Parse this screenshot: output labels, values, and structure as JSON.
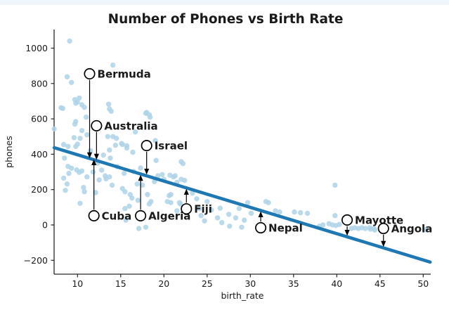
{
  "page": {
    "topbar_color": "#eff7fd",
    "background_color": "#ffffff"
  },
  "chart_data": {
    "type": "scatter",
    "title": "Number of Phones vs Birth Rate",
    "xlabel": "birth_rate",
    "ylabel": "phones",
    "xlim": [
      7.3,
      51.2
    ],
    "ylim": [
      -278,
      1105
    ],
    "xticks": [
      10,
      15,
      20,
      25,
      30,
      35,
      40,
      45,
      50
    ],
    "yticks": [
      -200,
      0,
      200,
      400,
      600,
      800,
      1000
    ],
    "grid": false,
    "legend": null,
    "colors": {
      "point": "#aed3e8",
      "trend_line": "#1f77b4",
      "annotation_marker_fill": "#ffffff",
      "annotation_marker_edge": "#000000",
      "axis": "#262626"
    },
    "points": [
      [
        9.1,
        1040
      ],
      [
        8.8,
        838
      ],
      [
        9.3,
        806
      ],
      [
        14.1,
        904
      ],
      [
        10.2,
        718
      ],
      [
        9.8,
        689
      ],
      [
        8.3,
        659
      ],
      [
        10.5,
        680
      ],
      [
        10.8,
        665
      ],
      [
        11,
        610
      ],
      [
        9.8,
        585
      ],
      [
        9.7,
        570
      ],
      [
        13.6,
        683
      ],
      [
        13.9,
        643
      ],
      [
        13.7,
        656
      ],
      [
        8.1,
        663
      ],
      [
        9.7,
        709
      ],
      [
        10,
        696
      ],
      [
        17.9,
        632
      ],
      [
        18,
        636
      ],
      [
        18.3,
        623
      ],
      [
        18.4,
        610
      ],
      [
        13.5,
        500
      ],
      [
        14.1,
        500
      ],
      [
        14.5,
        490
      ],
      [
        9.6,
        494
      ],
      [
        10.5,
        534
      ],
      [
        11.1,
        510
      ],
      [
        8.4,
        455
      ],
      [
        8.9,
        444
      ],
      [
        9.8,
        444
      ],
      [
        10.3,
        490
      ],
      [
        15.2,
        455
      ],
      [
        15.7,
        435
      ],
      [
        16.4,
        411
      ],
      [
        16.7,
        526
      ],
      [
        19,
        477
      ],
      [
        7.3,
        543
      ],
      [
        10,
        457
      ],
      [
        14.4,
        451
      ],
      [
        15.1,
        461
      ],
      [
        15.7,
        448
      ],
      [
        13.7,
        424
      ],
      [
        13.8,
        378
      ],
      [
        8.5,
        378
      ],
      [
        8.9,
        331
      ],
      [
        9.3,
        321
      ],
      [
        9.9,
        311
      ],
      [
        10.2,
        298
      ],
      [
        9,
        292
      ],
      [
        8.4,
        265
      ],
      [
        8.8,
        232
      ],
      [
        8.6,
        196
      ],
      [
        10.5,
        305
      ],
      [
        11.1,
        272
      ],
      [
        10.7,
        212
      ],
      [
        10.8,
        188
      ],
      [
        10.3,
        122
      ],
      [
        12.1,
        183
      ],
      [
        13.2,
        278
      ],
      [
        13.3,
        261
      ],
      [
        13.7,
        272
      ],
      [
        15.4,
        292
      ],
      [
        15.2,
        206
      ],
      [
        15.5,
        188
      ],
      [
        16.1,
        172
      ],
      [
        16.3,
        152
      ],
      [
        16,
        106
      ],
      [
        15.5,
        93
      ],
      [
        15.6,
        27
      ],
      [
        17,
        139
      ],
      [
        16.9,
        232
      ],
      [
        17.5,
        225
      ],
      [
        18.1,
        172
      ],
      [
        18.5,
        132
      ],
      [
        18.3,
        119
      ],
      [
        18.9,
        245
      ],
      [
        19.3,
        278
      ],
      [
        20,
        258
      ],
      [
        20.7,
        281
      ],
      [
        21.1,
        272
      ],
      [
        21.5,
        241
      ],
      [
        20.8,
        172
      ],
      [
        20.4,
        132
      ],
      [
        21.8,
        126
      ],
      [
        17.9,
        -13
      ],
      [
        17.1,
        -20
      ],
      [
        19.1,
        365
      ],
      [
        19.8,
        285
      ],
      [
        21.3,
        278
      ],
      [
        22,
        358
      ],
      [
        22.2,
        347
      ],
      [
        22,
        258
      ],
      [
        22.4,
        252
      ],
      [
        20.6,
        166
      ],
      [
        20.8,
        126
      ],
      [
        21.9,
        119
      ],
      [
        21.5,
        80
      ],
      [
        22.7,
        73
      ],
      [
        24.1,
        93
      ],
      [
        24.3,
        53
      ],
      [
        25,
        132
      ],
      [
        26.2,
        40
      ],
      [
        26.7,
        13
      ],
      [
        27.5,
        60
      ],
      [
        27.6,
        -7
      ],
      [
        28.3,
        40
      ],
      [
        29,
        -13
      ],
      [
        29.3,
        27
      ],
      [
        29.7,
        126
      ],
      [
        30.1,
        66
      ],
      [
        31.8,
        132
      ],
      [
        32.1,
        126
      ],
      [
        39.8,
        225
      ],
      [
        32.9,
        80
      ],
      [
        33.4,
        73
      ],
      [
        35.1,
        73
      ],
      [
        35.8,
        69
      ],
      [
        36.6,
        66
      ],
      [
        38,
        -7
      ],
      [
        38.4,
        0
      ],
      [
        39.1,
        7
      ],
      [
        39.5,
        0
      ],
      [
        39.9,
        -3
      ],
      [
        40.3,
        3
      ],
      [
        39.8,
        53
      ],
      [
        41.7,
        -20
      ],
      [
        42.1,
        -16
      ],
      [
        42.5,
        -20
      ],
      [
        42.9,
        -16
      ],
      [
        43.3,
        -20
      ],
      [
        43.8,
        -16
      ],
      [
        44.3,
        -20
      ],
      [
        43.9,
        -24
      ],
      [
        44.4,
        -29
      ],
      [
        50.3,
        -27
      ],
      [
        11.5,
        420
      ],
      [
        12.3,
        350
      ],
      [
        12.8,
        310
      ],
      [
        14.6,
        330
      ],
      [
        12.5,
        255
      ],
      [
        14,
        225
      ],
      [
        11.8,
        300
      ],
      [
        13,
        395
      ],
      [
        16.5,
        302
      ],
      [
        17.3,
        322
      ],
      [
        23.3,
        180
      ],
      [
        23.8,
        148
      ],
      [
        25.5,
        85
      ],
      [
        26.5,
        95
      ],
      [
        24.7,
        23
      ],
      [
        28.7,
        93
      ],
      [
        19,
        258
      ]
    ],
    "trendline": {
      "x": [
        7.3,
        50.8
      ],
      "y": [
        437,
        -210
      ]
    },
    "annotations": [
      {
        "label": "Bermuda",
        "x": 11.4,
        "y": 855,
        "arrow_to_y": 382
      },
      {
        "label": "Australia",
        "x": 12.2,
        "y": 561,
        "arrow_to_y": 374
      },
      {
        "label": "Israel",
        "x": 18.0,
        "y": 449,
        "arrow_to_y": 290
      },
      {
        "label": "Cuba",
        "x": 11.9,
        "y": 52,
        "arrow_to_y": 366
      },
      {
        "label": "Algeria",
        "x": 17.3,
        "y": 52,
        "arrow_to_y": 278
      },
      {
        "label": "Fiji",
        "x": 22.6,
        "y": 91,
        "arrow_to_y": 199
      },
      {
        "label": "Nepal",
        "x": 31.2,
        "y": -16,
        "arrow_to_y": 72
      },
      {
        "label": "Mayotte",
        "x": 41.2,
        "y": 28,
        "arrow_to_y": -56
      },
      {
        "label": "Angola",
        "x": 45.4,
        "y": -20,
        "arrow_to_y": -119
      }
    ]
  }
}
